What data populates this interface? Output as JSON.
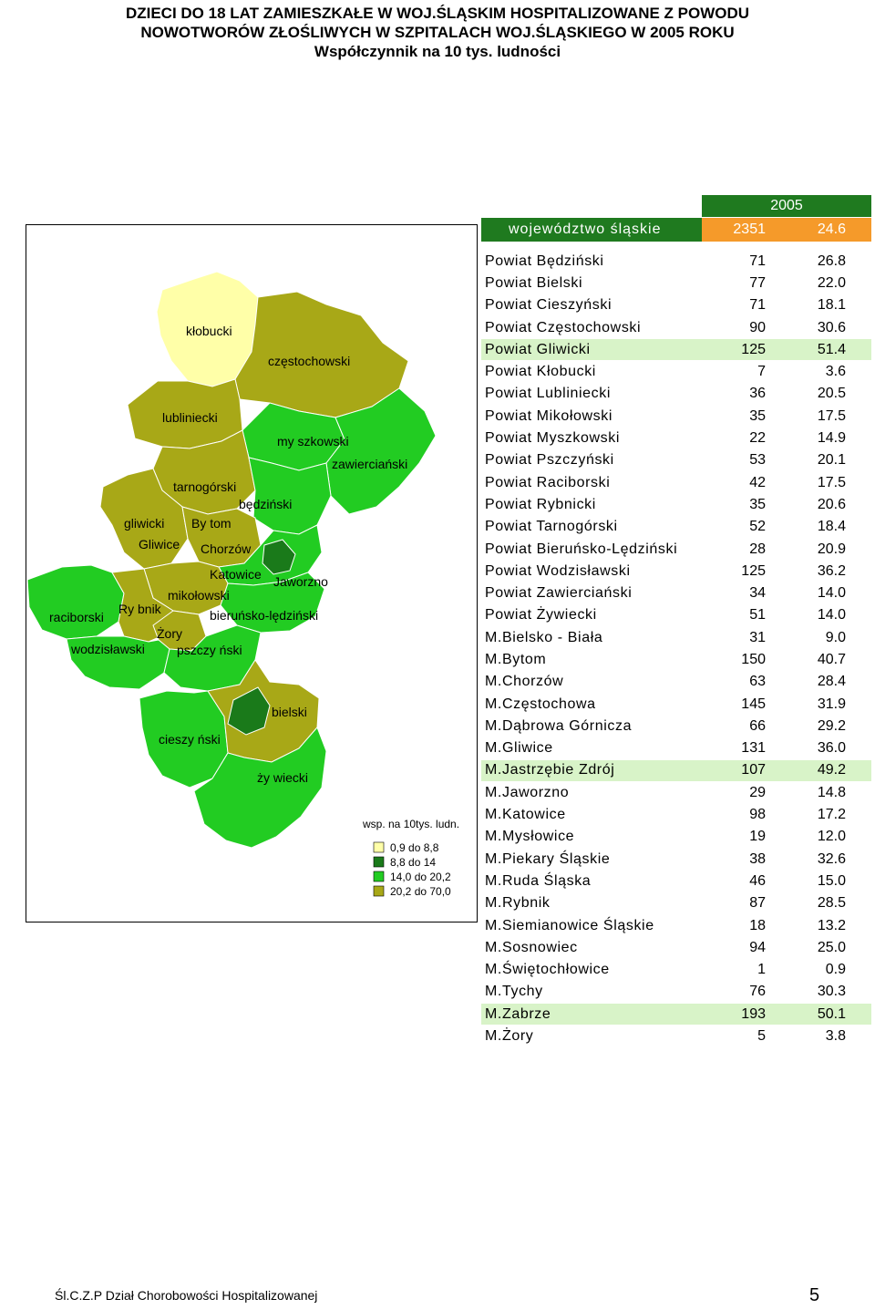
{
  "title": {
    "line1": "DZIECI DO 18 LAT ZAMIESZKAŁE W WOJ.ŚLĄSKIM HOSPITALIZOWANE Z POWODU",
    "line2": "NOWOTWORÓW ZŁOŚLIWYCH W SZPITALACH WOJ.ŚLĄSKIEGO W 2005 ROKU",
    "line3": "Współczynnik na 10 tys. ludności"
  },
  "map": {
    "labels": {
      "klobucki": "kłobucki",
      "czestochowski": "częstochowski",
      "lubliniecki": "lubliniecki",
      "myszkowski": "my szkowski",
      "zawiercianski": "zawierciański",
      "tarnogorski": "tarnogórski",
      "bedzinski": "będziński",
      "gliwicki": "gliwicki",
      "bytom": "By tom",
      "gliwice": "Gliwice",
      "chorzow": "Chorzów",
      "katowice": "Katowice",
      "jaworzno": "Jaworzno",
      "mikolowski": "mikołowski",
      "rybnik": "Ry bnik",
      "raciborski": "raciborski",
      "bierunsko": "bieruńsko-lędziński",
      "zory": "Żory",
      "wodzislawski": "wodzisławski",
      "pszczynski": "pszczy ński",
      "bielski": "bielski",
      "cieszynski": "cieszy ński",
      "zywiecki": "ży wiecki"
    },
    "legend": {
      "title": "wsp. na 10tys. ludn.",
      "items": [
        {
          "label": "0,9 do   8,8",
          "color": "#ffffa8"
        },
        {
          "label": "8,8 do 14",
          "color": "#1a7a1a"
        },
        {
          "label": "14,0 do 20,2",
          "color": "#22cc22"
        },
        {
          "label": "20,2 do 70,0",
          "color": "#a8a817"
        }
      ]
    },
    "colors": {
      "light_yellow": "#ffffa8",
      "dark_green": "#1a7a1a",
      "bright_green": "#22cc22",
      "olive": "#a8a817"
    }
  },
  "table": {
    "year": "2005",
    "voivodeship": {
      "name": "województwo śląskie",
      "count": "2351",
      "rate": "24.6"
    },
    "rows": [
      {
        "name": "Powiat Będziński",
        "count": "71",
        "rate": "26.8",
        "shade": "g1"
      },
      {
        "name": "Powiat Bielski",
        "count": "77",
        "rate": "22.0",
        "shade": "g1"
      },
      {
        "name": "Powiat Cieszyński",
        "count": "71",
        "rate": "18.1",
        "shade": "g1"
      },
      {
        "name": "Powiat Częstochowski",
        "count": "90",
        "rate": "30.6",
        "shade": "g1"
      },
      {
        "name": "Powiat Gliwicki",
        "count": "125",
        "rate": "51.4",
        "shade": "g2"
      },
      {
        "name": "Powiat Kłobucki",
        "count": "7",
        "rate": "3.6",
        "shade": "g1"
      },
      {
        "name": "Powiat Lubliniecki",
        "count": "36",
        "rate": "20.5",
        "shade": "g1"
      },
      {
        "name": "Powiat Mikołowski",
        "count": "35",
        "rate": "17.5",
        "shade": "g1"
      },
      {
        "name": "Powiat Myszkowski",
        "count": "22",
        "rate": "14.9",
        "shade": "g1"
      },
      {
        "name": "Powiat Pszczyński",
        "count": "53",
        "rate": "20.1",
        "shade": "g1"
      },
      {
        "name": "Powiat Raciborski",
        "count": "42",
        "rate": "17.5",
        "shade": "g1"
      },
      {
        "name": "Powiat Rybnicki",
        "count": "35",
        "rate": "20.6",
        "shade": "g1"
      },
      {
        "name": "Powiat Tarnogórski",
        "count": "52",
        "rate": "18.4",
        "shade": "g1"
      },
      {
        "name": "Powiat Bieruńsko-Lędziński",
        "count": "28",
        "rate": "20.9",
        "shade": "g1"
      },
      {
        "name": "Powiat Wodzisławski",
        "count": "125",
        "rate": "36.2",
        "shade": "g1"
      },
      {
        "name": "Powiat Zawierciański",
        "count": "34",
        "rate": "14.0",
        "shade": "g1"
      },
      {
        "name": "Powiat Żywiecki",
        "count": "51",
        "rate": "14.0",
        "shade": "g1"
      },
      {
        "name": "M.Bielsko - Biała",
        "count": "31",
        "rate": "9.0",
        "shade": "g1"
      },
      {
        "name": "M.Bytom",
        "count": "150",
        "rate": "40.7",
        "shade": "g1"
      },
      {
        "name": "M.Chorzów",
        "count": "63",
        "rate": "28.4",
        "shade": "g1"
      },
      {
        "name": "M.Częstochowa",
        "count": "145",
        "rate": "31.9",
        "shade": "g1"
      },
      {
        "name": "M.Dąbrowa Górnicza",
        "count": "66",
        "rate": "29.2",
        "shade": "g1"
      },
      {
        "name": "M.Gliwice",
        "count": "131",
        "rate": "36.0",
        "shade": "g1"
      },
      {
        "name": "M.Jastrzębie Zdrój",
        "count": "107",
        "rate": "49.2",
        "shade": "g2"
      },
      {
        "name": "M.Jaworzno",
        "count": "29",
        "rate": "14.8",
        "shade": "g1"
      },
      {
        "name": "M.Katowice",
        "count": "98",
        "rate": "17.2",
        "shade": "g1"
      },
      {
        "name": "M.Mysłowice",
        "count": "19",
        "rate": "12.0",
        "shade": "g1"
      },
      {
        "name": "M.Piekary Śląskie",
        "count": "38",
        "rate": "32.6",
        "shade": "g1"
      },
      {
        "name": "M.Ruda Śląska",
        "count": "46",
        "rate": "15.0",
        "shade": "g1"
      },
      {
        "name": "M.Rybnik",
        "count": "87",
        "rate": "28.5",
        "shade": "g1"
      },
      {
        "name": "M.Siemianowice Śląskie",
        "count": "18",
        "rate": "13.2",
        "shade": "g1"
      },
      {
        "name": "M.Sosnowiec",
        "count": "94",
        "rate": "25.0",
        "shade": "g1"
      },
      {
        "name": "M.Świętochłowice",
        "count": "1",
        "rate": "0.9",
        "shade": "g1"
      },
      {
        "name": "M.Tychy",
        "count": "76",
        "rate": "30.3",
        "shade": "g1"
      },
      {
        "name": "M.Zabrze",
        "count": "193",
        "rate": "50.1",
        "shade": "g2"
      },
      {
        "name": "M.Żory",
        "count": "5",
        "rate": "3.8",
        "shade": "g1"
      }
    ]
  },
  "footer": {
    "left": "Śl.C.Z.P   Dział Chorobowości Hospitalizowanej",
    "page": "5"
  }
}
